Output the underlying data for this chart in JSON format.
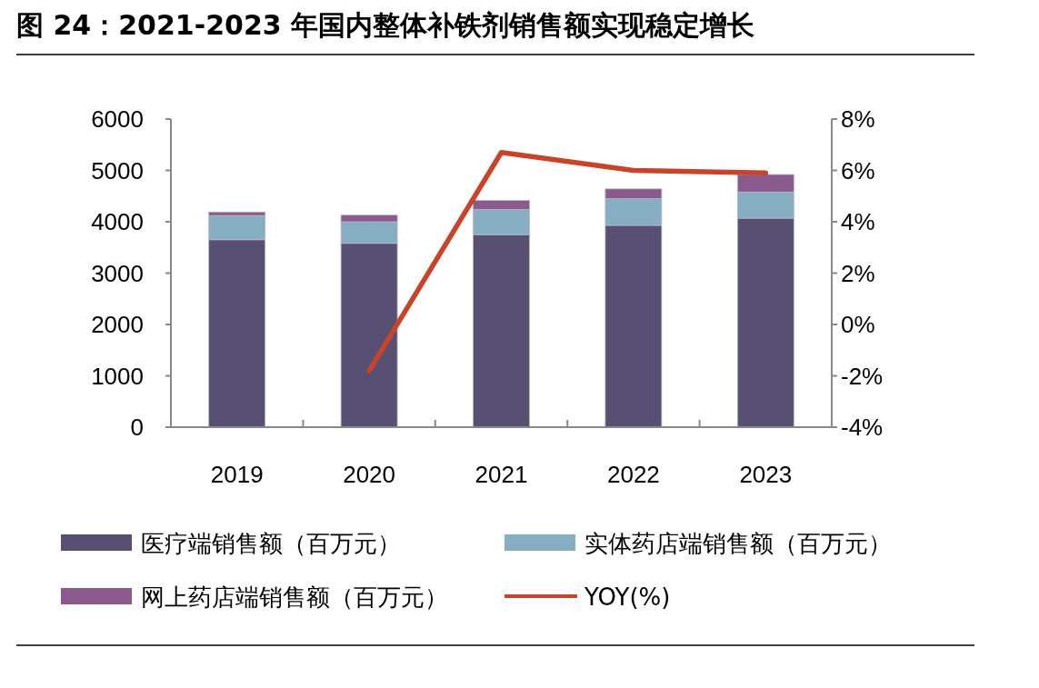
{
  "chart_data": {
    "type": "bar",
    "title": "图 24：2021-2023 年国内整体补铁剂销售额实现稳定增长",
    "categories": [
      "2019",
      "2020",
      "2021",
      "2022",
      "2023"
    ],
    "stacked": true,
    "series": [
      {
        "name": "医疗端销售额（百万元）",
        "color": "#575073",
        "values": [
          3650,
          3580,
          3750,
          3930,
          4070
        ]
      },
      {
        "name": "实体药店端销售额（百万元）",
        "color": "#86aec2",
        "values": [
          470,
          420,
          490,
          520,
          510
        ]
      },
      {
        "name": "网上药店端销售额（百万元）",
        "color": "#8a5a8c",
        "values": [
          70,
          130,
          175,
          190,
          340
        ]
      },
      {
        "name": "YOY(%)",
        "type": "line",
        "axis": "y2",
        "color": "#c8432a",
        "values": [
          null,
          -1.8,
          6.7,
          6.0,
          5.9
        ]
      }
    ],
    "ylim": [
      0,
      6000
    ],
    "yticks": [
      0,
      1000,
      2000,
      3000,
      4000,
      5000,
      6000
    ],
    "y2lim": [
      -4,
      8
    ],
    "y2ticks": [
      {
        "value": -4,
        "label": "-4%"
      },
      {
        "value": -2,
        "label": "-2%"
      },
      {
        "value": 0,
        "label": "0%"
      },
      {
        "value": 2,
        "label": "2%"
      },
      {
        "value": 4,
        "label": "4%"
      },
      {
        "value": 6,
        "label": "6%"
      },
      {
        "value": 8,
        "label": "8%"
      }
    ],
    "grid": false,
    "legend": "bottom"
  }
}
